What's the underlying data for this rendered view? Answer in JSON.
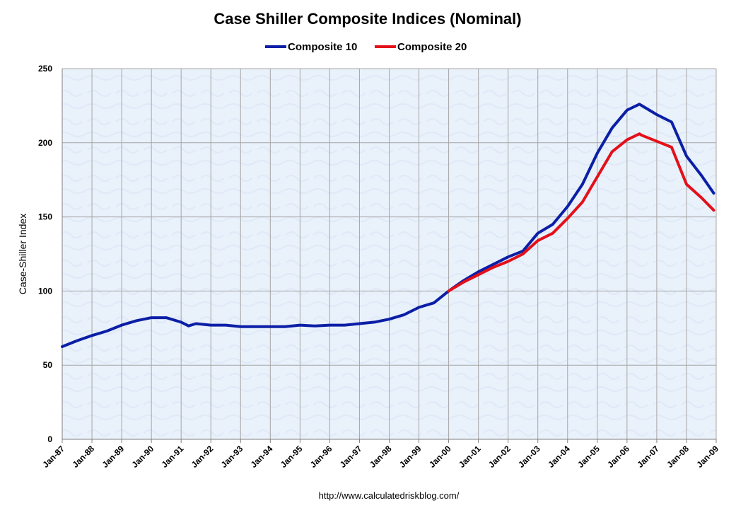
{
  "chart_data": {
    "type": "line",
    "title": "Case Shiller Composite Indices (Nominal)",
    "ylabel": "Case-Shiller Index",
    "xlabel": "",
    "ylim": [
      0,
      250
    ],
    "xlim": [
      "1987-01",
      "2009-01"
    ],
    "y_ticks": [
      "0",
      "50",
      "100",
      "150",
      "200",
      "250"
    ],
    "x_ticks": [
      "Jan-87",
      "Jan-88",
      "Jan-89",
      "Jan-90",
      "Jan-91",
      "Jan-92",
      "Jan-93",
      "Jan-94",
      "Jan-95",
      "Jan-96",
      "Jan-97",
      "Jan-98",
      "Jan-99",
      "Jan-00",
      "Jan-01",
      "Jan-02",
      "Jan-03",
      "Jan-04",
      "Jan-05",
      "Jan-06",
      "Jan-07",
      "Jan-08",
      "Jan-09"
    ],
    "grid": true,
    "legend_position": "top",
    "source_note": "http://www.calculatedriskblog.com/",
    "colors": {
      "plot_background": "#e9f1fb",
      "grid": "#a6a6a6",
      "composite_10": "#0b1fa6",
      "composite_20": "#e3101a"
    },
    "series": [
      {
        "name": "Composite 10",
        "color": "#0b1fa6",
        "x": [
          "1987-01",
          "1987-07",
          "1988-01",
          "1988-07",
          "1989-01",
          "1989-07",
          "1990-01",
          "1990-07",
          "1991-01",
          "1991-04",
          "1991-07",
          "1992-01",
          "1992-07",
          "1993-01",
          "1993-07",
          "1994-01",
          "1994-07",
          "1995-01",
          "1995-07",
          "1996-01",
          "1996-07",
          "1997-01",
          "1997-07",
          "1998-01",
          "1998-07",
          "1999-01",
          "1999-07",
          "2000-01",
          "2000-07",
          "2001-01",
          "2001-07",
          "2002-01",
          "2002-07",
          "2003-01",
          "2003-07",
          "2004-01",
          "2004-07",
          "2005-01",
          "2005-07",
          "2006-01",
          "2006-06",
          "2006-07",
          "2007-01",
          "2007-07",
          "2008-01",
          "2008-07",
          "2008-12"
        ],
        "values": [
          62.5,
          66.5,
          70,
          73,
          77,
          80,
          82,
          82,
          79,
          76.5,
          78,
          77,
          77,
          76,
          76,
          76,
          76,
          77,
          76.5,
          77,
          77,
          78,
          79,
          81,
          84,
          89,
          92,
          100,
          107,
          113,
          118,
          123,
          127,
          139,
          145,
          157,
          172,
          193,
          210,
          222,
          226,
          225,
          219,
          214,
          191,
          178,
          166
        ]
      },
      {
        "name": "Composite 20",
        "color": "#e3101a",
        "x": [
          "2000-01",
          "2000-07",
          "2001-01",
          "2001-07",
          "2002-01",
          "2002-07",
          "2003-01",
          "2003-07",
          "2004-01",
          "2004-07",
          "2005-01",
          "2005-07",
          "2006-01",
          "2006-06",
          "2006-07",
          "2007-01",
          "2007-07",
          "2008-01",
          "2008-07",
          "2008-12"
        ],
        "values": [
          100,
          106,
          111,
          116,
          120,
          125,
          134,
          139,
          149,
          160,
          177,
          194,
          202,
          206,
          205,
          201,
          197,
          172,
          163,
          154.5
        ]
      }
    ]
  }
}
